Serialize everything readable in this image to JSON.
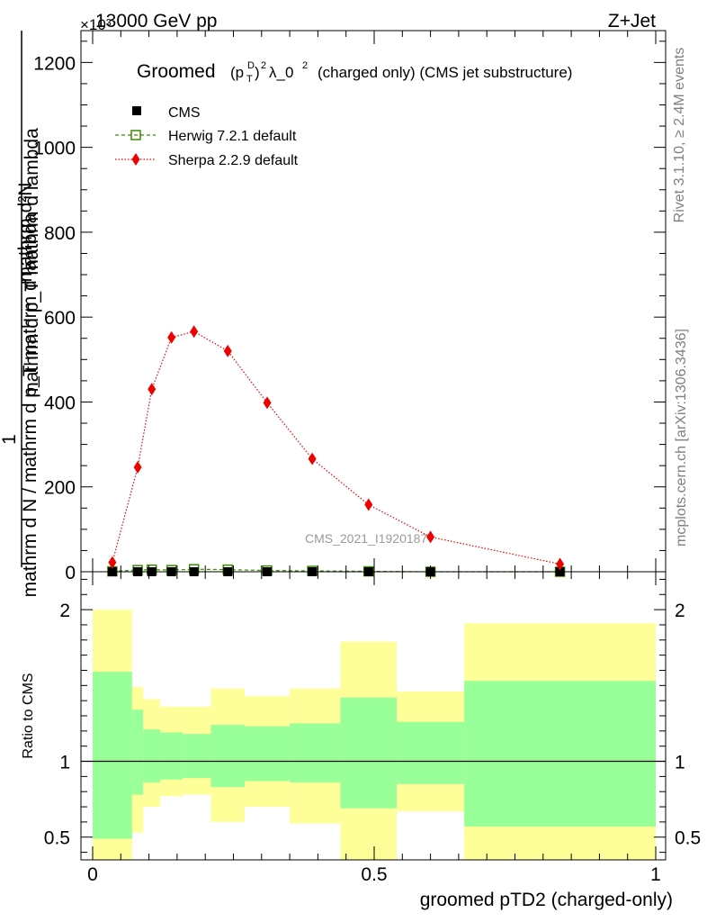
{
  "header": {
    "energy": "13000 GeV pp",
    "process": "Z+Jet"
  },
  "side_text": {
    "rivet": "Rivet 3.1.10, ≥ 2.4M events",
    "mcplots": "mcplots.cern.ch [arXiv:1306.3436]"
  },
  "chart_data": [
    {
      "type": "line",
      "title_main": "Groomed",
      "title_mid": "λ_0",
      "title_rest": "(charged only) (CMS jet substructure)",
      "ylabel": "1 / mathrm d N / mathrm d p_T mathrm d lambda · mathrm d²N / mathrm d p_T mathrm d lambda",
      "ylabel_top": "mathrm d²N",
      "ylabel_mid": "mathrm d p_T mathrm d lambda",
      "ylabel_one": "1",
      "ylabel_bottom": "mathrm d N / mathrm d p_T mathrm d lambda",
      "multiplier": "×10³",
      "watermark": "CMS_2021_I1920187",
      "xlim": [
        0,
        1
      ],
      "ylim": [
        0,
        1275
      ],
      "yticks": [
        0,
        200,
        400,
        600,
        800,
        1000,
        1200
      ],
      "legend_position": "top-left",
      "series": [
        {
          "name": "CMS",
          "color": "#000000",
          "x": [
            0.035,
            0.08,
            0.105,
            0.14,
            0.18,
            0.24,
            0.31,
            0.39,
            0.49,
            0.6,
            0.83
          ],
          "y": [
            0,
            0,
            0,
            0,
            0,
            0,
            0,
            0,
            0,
            0,
            0
          ]
        },
        {
          "name": "Herwig 7.2.1 default",
          "color": "#3a8d00",
          "x": [
            0.035,
            0.08,
            0.105,
            0.14,
            0.18,
            0.24,
            0.31,
            0.39,
            0.49,
            0.6,
            0.83
          ],
          "y": [
            1,
            4,
            5,
            4,
            6,
            5,
            3,
            2,
            1,
            0,
            0
          ]
        },
        {
          "name": "Sherpa 2.2.9 default",
          "color": "#ee0000",
          "x": [
            0.035,
            0.08,
            0.105,
            0.14,
            0.18,
            0.24,
            0.31,
            0.39,
            0.49,
            0.6,
            0.83
          ],
          "y": [
            22,
            246,
            430,
            552,
            566,
            520,
            398,
            266,
            158,
            82,
            18
          ]
        }
      ]
    },
    {
      "type": "area",
      "ylabel": "Ratio to CMS",
      "xlabel": "groomed pTD2 (charged-only)",
      "xlim": [
        0,
        1
      ],
      "ylim": [
        0.35,
        2.25
      ],
      "xticks": [
        0,
        0.5,
        1
      ],
      "xtick_labels": [
        "0",
        "0.5",
        "1"
      ],
      "yticks": [
        0.5,
        1,
        2
      ],
      "ytick_labels": [
        "0.5",
        "1",
        "2"
      ],
      "bands": [
        {
          "x0": 0.0,
          "x1": 0.07,
          "stat_lo": 0.49,
          "stat_hi": 1.59,
          "tot_lo": 0.3,
          "tot_hi": 2.0
        },
        {
          "x0": 0.07,
          "x1": 0.09,
          "stat_lo": 0.78,
          "stat_hi": 1.34,
          "tot_lo": 0.53,
          "tot_hi": 1.49
        },
        {
          "x0": 0.09,
          "x1": 0.12,
          "stat_lo": 0.86,
          "stat_hi": 1.21,
          "tot_lo": 0.7,
          "tot_hi": 1.41
        },
        {
          "x0": 0.12,
          "x1": 0.16,
          "stat_lo": 0.88,
          "stat_hi": 1.19,
          "tot_lo": 0.77,
          "tot_hi": 1.36
        },
        {
          "x0": 0.16,
          "x1": 0.21,
          "stat_lo": 0.89,
          "stat_hi": 1.18,
          "tot_lo": 0.78,
          "tot_hi": 1.36
        },
        {
          "x0": 0.21,
          "x1": 0.27,
          "stat_lo": 0.83,
          "stat_hi": 1.24,
          "tot_lo": 0.6,
          "tot_hi": 1.48
        },
        {
          "x0": 0.27,
          "x1": 0.35,
          "stat_lo": 0.87,
          "stat_hi": 1.23,
          "tot_lo": 0.7,
          "tot_hi": 1.43
        },
        {
          "x0": 0.35,
          "x1": 0.44,
          "stat_lo": 0.86,
          "stat_hi": 1.25,
          "tot_lo": 0.59,
          "tot_hi": 1.48
        },
        {
          "x0": 0.44,
          "x1": 0.54,
          "stat_lo": 0.69,
          "stat_hi": 1.42,
          "tot_lo": 0.3,
          "tot_hi": 1.79
        },
        {
          "x0": 0.54,
          "x1": 0.66,
          "stat_lo": 0.85,
          "stat_hi": 1.26,
          "tot_lo": 0.67,
          "tot_hi": 1.46
        },
        {
          "x0": 0.66,
          "x1": 1.0,
          "stat_lo": 0.57,
          "stat_hi": 1.53,
          "tot_lo": 0.3,
          "tot_hi": 1.91
        }
      ],
      "stat_color": "#99ff99",
      "total_color": "#ffff99",
      "reference": 1
    }
  ]
}
